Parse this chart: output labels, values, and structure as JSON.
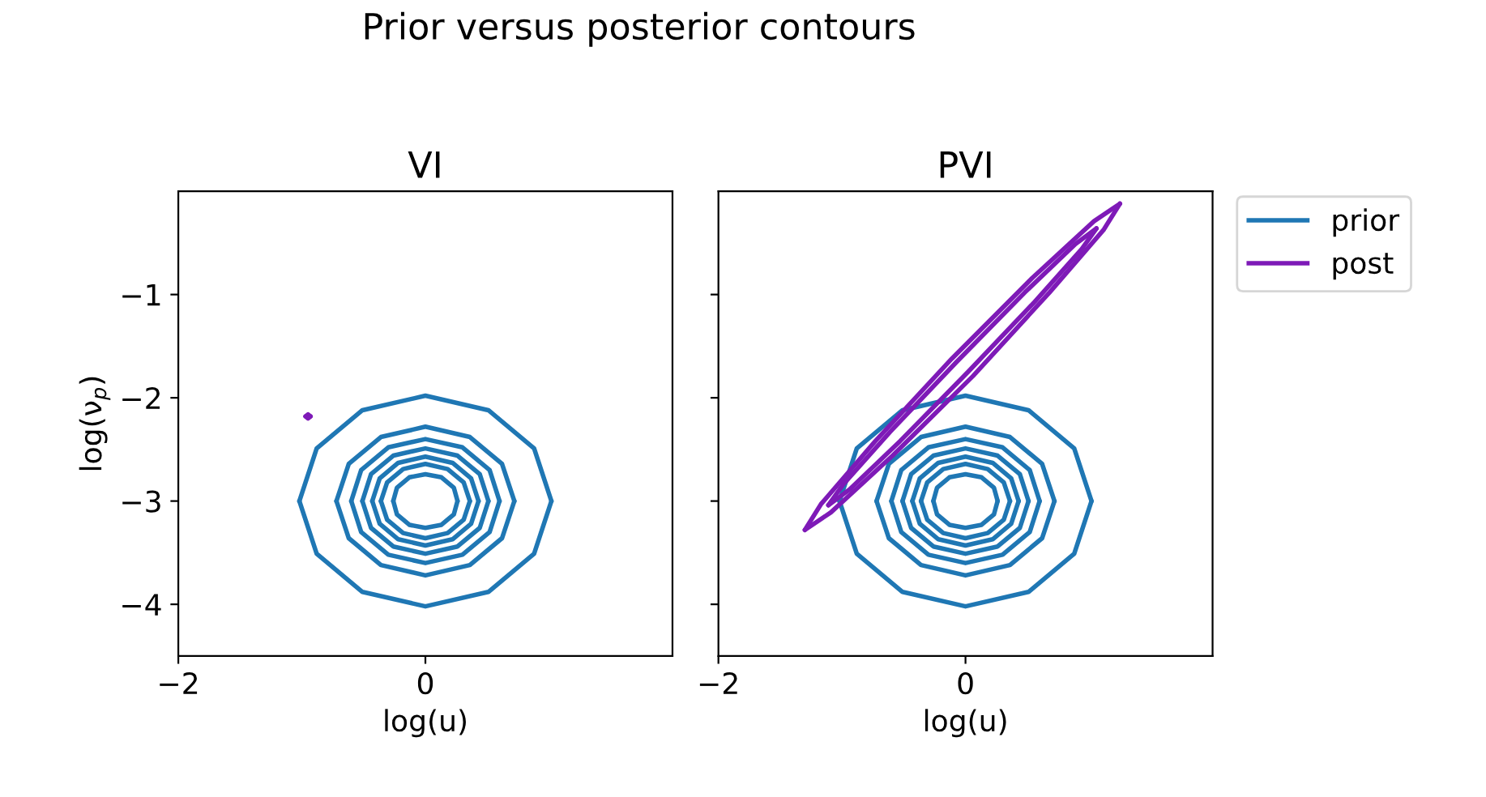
{
  "chart_data": [
    {
      "type": "line",
      "title": "VI",
      "annotations": [
        "Prior versus posterior contours"
      ],
      "xlabel": "log(u)",
      "ylabel": "log(ν$_{p}$)",
      "xlim": [
        -2,
        2
      ],
      "ylim": [
        -4.5,
        0
      ],
      "xticks": [
        {
          "value": -2,
          "label": "−2"
        },
        0
      ],
      "yticks": [
        {
          "value": -4,
          "label": "−4"
        },
        {
          "value": -3,
          "label": "−3"
        },
        {
          "value": -2,
          "label": "−2"
        },
        {
          "value": -1,
          "label": "−1"
        }
      ],
      "grid": false,
      "legend": false,
      "series": [
        {
          "color": "#1f77b4",
          "x": [
            1.02,
            0.88,
            0.51,
            0,
            -0.51,
            -0.88,
            -1.02,
            -0.88,
            -0.51,
            0,
            0.51,
            0.88,
            1.02
          ],
          "values": [
            -3,
            -2.49,
            -2.12,
            -1.98,
            -2.12,
            -2.49,
            -3,
            -3.51,
            -3.88,
            -4.02,
            -3.88,
            -3.51,
            -3
          ]
        },
        {
          "color": "#1f77b4",
          "x": [
            0.72,
            0.62,
            0.36,
            0,
            -0.36,
            -0.62,
            -0.72,
            -0.62,
            -0.36,
            0,
            0.36,
            0.62,
            0.72
          ],
          "values": [
            -3,
            -2.64,
            -2.38,
            -2.28,
            -2.38,
            -2.64,
            -3,
            -3.36,
            -3.62,
            -3.72,
            -3.62,
            -3.36,
            -3
          ]
        },
        {
          "color": "#1f77b4",
          "x": [
            0.6,
            0.52,
            0.3,
            0,
            -0.3,
            -0.52,
            -0.6,
            -0.52,
            -0.3,
            0,
            0.3,
            0.52,
            0.6
          ],
          "values": [
            -3,
            -2.7,
            -2.48,
            -2.4,
            -2.48,
            -2.7,
            -3,
            -3.3,
            -3.52,
            -3.6,
            -3.52,
            -3.3,
            -3
          ]
        },
        {
          "color": "#1f77b4",
          "x": [
            0.51,
            0.44,
            0.26,
            0,
            -0.26,
            -0.44,
            -0.51,
            -0.44,
            -0.26,
            0,
            0.26,
            0.44,
            0.51
          ],
          "values": [
            -3,
            -2.74,
            -2.56,
            -2.49,
            -2.56,
            -2.74,
            -3,
            -3.26,
            -3.44,
            -3.51,
            -3.44,
            -3.26,
            -3
          ]
        },
        {
          "color": "#1f77b4",
          "x": [
            0.43,
            0.37,
            0.22,
            0,
            -0.22,
            -0.37,
            -0.43,
            -0.37,
            -0.22,
            0,
            0.22,
            0.37,
            0.43
          ],
          "values": [
            -3,
            -2.78,
            -2.63,
            -2.57,
            -2.63,
            -2.78,
            -3,
            -3.22,
            -3.37,
            -3.43,
            -3.37,
            -3.22,
            -3
          ]
        },
        {
          "color": "#1f77b4",
          "x": [
            0.36,
            0.31,
            0.18,
            0,
            -0.18,
            -0.31,
            -0.36,
            -0.31,
            -0.18,
            0,
            0.18,
            0.31,
            0.36
          ],
          "values": [
            -3,
            -2.82,
            -2.69,
            -2.64,
            -2.69,
            -2.82,
            -3,
            -3.18,
            -3.31,
            -3.36,
            -3.31,
            -3.18,
            -3
          ]
        },
        {
          "color": "#1f77b4",
          "x": [
            0.26,
            0.23,
            0.13,
            0,
            -0.13,
            -0.23,
            -0.26,
            -0.23,
            -0.13,
            0,
            0.13,
            0.23,
            0.26
          ],
          "values": [
            -3,
            -2.87,
            -2.77,
            -2.74,
            -2.77,
            -2.87,
            -3,
            -3.13,
            -3.23,
            -3.26,
            -3.23,
            -3.13,
            -3
          ]
        },
        {
          "color": "#7e1ab7",
          "x": [
            -0.93,
            -0.95,
            -0.97,
            -0.95,
            -0.93
          ],
          "values": [
            -2.18,
            -2.16,
            -2.18,
            -2.2,
            -2.18
          ]
        }
      ]
    },
    {
      "type": "line",
      "title": "PVI",
      "xlabel": "log(u)",
      "xlim": [
        -2,
        2
      ],
      "ylim": [
        -4.5,
        0
      ],
      "xticks": [
        {
          "value": -2,
          "label": "−2"
        },
        0
      ],
      "yticks": [
        -4,
        -3,
        -2,
        -1
      ],
      "tick_labels": "x",
      "grid": false,
      "legend": "top right",
      "series": [
        {
          "name": "prior",
          "color": "#1f77b4",
          "x": [
            1.02,
            0.88,
            0.51,
            0,
            -0.51,
            -0.88,
            -1.02,
            -0.88,
            -0.51,
            0,
            0.51,
            0.88,
            1.02
          ],
          "values": [
            -3,
            -2.49,
            -2.12,
            -1.98,
            -2.12,
            -2.49,
            -3,
            -3.51,
            -3.88,
            -4.02,
            -3.88,
            -3.51,
            -3
          ]
        },
        {
          "color": "#1f77b4",
          "x": [
            0.72,
            0.62,
            0.36,
            0,
            -0.36,
            -0.62,
            -0.72,
            -0.62,
            -0.36,
            0,
            0.36,
            0.62,
            0.72
          ],
          "values": [
            -3,
            -2.64,
            -2.38,
            -2.28,
            -2.38,
            -2.64,
            -3,
            -3.36,
            -3.62,
            -3.72,
            -3.62,
            -3.36,
            -3
          ]
        },
        {
          "color": "#1f77b4",
          "x": [
            0.6,
            0.52,
            0.3,
            0,
            -0.3,
            -0.52,
            -0.6,
            -0.52,
            -0.3,
            0,
            0.3,
            0.52,
            0.6
          ],
          "values": [
            -3,
            -2.7,
            -2.48,
            -2.4,
            -2.48,
            -2.7,
            -3,
            -3.3,
            -3.52,
            -3.6,
            -3.52,
            -3.3,
            -3
          ]
        },
        {
          "color": "#1f77b4",
          "x": [
            0.51,
            0.44,
            0.26,
            0,
            -0.26,
            -0.44,
            -0.51,
            -0.44,
            -0.26,
            0,
            0.26,
            0.44,
            0.51
          ],
          "values": [
            -3,
            -2.74,
            -2.56,
            -2.49,
            -2.56,
            -2.74,
            -3,
            -3.26,
            -3.44,
            -3.51,
            -3.44,
            -3.26,
            -3
          ]
        },
        {
          "color": "#1f77b4",
          "x": [
            0.43,
            0.37,
            0.22,
            0,
            -0.22,
            -0.37,
            -0.43,
            -0.37,
            -0.22,
            0,
            0.22,
            0.37,
            0.43
          ],
          "values": [
            -3,
            -2.78,
            -2.63,
            -2.57,
            -2.63,
            -2.78,
            -3,
            -3.22,
            -3.37,
            -3.43,
            -3.37,
            -3.22,
            -3
          ]
        },
        {
          "color": "#1f77b4",
          "x": [
            0.36,
            0.31,
            0.18,
            0,
            -0.18,
            -0.31,
            -0.36,
            -0.31,
            -0.18,
            0,
            0.18,
            0.31,
            0.36
          ],
          "values": [
            -3,
            -2.82,
            -2.69,
            -2.64,
            -2.69,
            -2.82,
            -3,
            -3.18,
            -3.31,
            -3.36,
            -3.31,
            -3.18,
            -3
          ]
        },
        {
          "color": "#1f77b4",
          "x": [
            0.26,
            0.23,
            0.13,
            0,
            -0.13,
            -0.23,
            -0.26,
            -0.23,
            -0.13,
            0,
            0.13,
            0.23,
            0.26
          ],
          "values": [
            -3,
            -2.87,
            -2.77,
            -2.74,
            -2.77,
            -2.87,
            -3,
            -3.13,
            -3.23,
            -3.26,
            -3.23,
            -3.13,
            -3
          ]
        },
        {
          "name": "post",
          "color": "#7e1ab7",
          "x": [
            1.25,
            1.12,
            0.68,
            0.06,
            -0.59,
            -1.09,
            -1.3,
            -1.17,
            -0.73,
            -0.11,
            0.54,
            1.04,
            1.25
          ],
          "values": [
            -0.12,
            -0.37,
            -0.98,
            -1.79,
            -2.56,
            -3.11,
            -3.28,
            -3.03,
            -2.42,
            -1.62,
            -0.84,
            -0.29,
            -0.12
          ]
        },
        {
          "color": "#7e1ab7",
          "x": [
            1.06,
            0.94,
            0.56,
            0.02,
            -0.53,
            -0.94,
            -1.11,
            -0.99,
            -0.61,
            -0.07,
            0.48,
            0.89,
            1.06
          ],
          "values": [
            -0.36,
            -0.56,
            -1.07,
            -1.75,
            -2.42,
            -2.89,
            -3.04,
            -2.84,
            -2.33,
            -1.65,
            -0.98,
            -0.51,
            -0.36
          ]
        }
      ]
    }
  ]
}
